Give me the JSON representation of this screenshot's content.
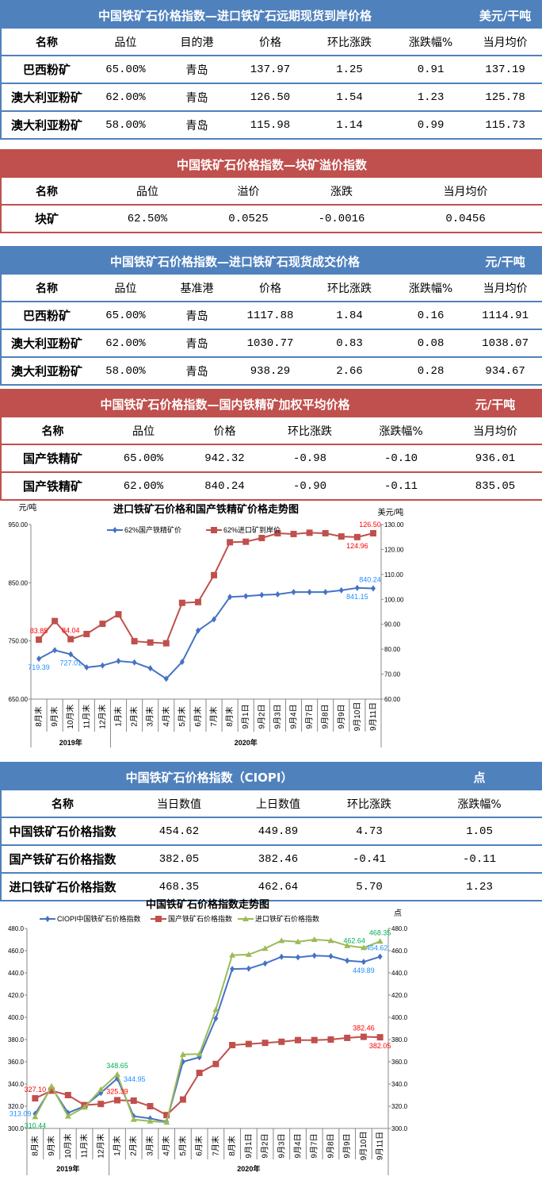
{
  "colors": {
    "blue_theme": "#4f81bd",
    "red_theme": "#c0504d",
    "series_blue": "#4472c4",
    "series_red": "#c0504d",
    "series_green": "#9bbb59",
    "label_blue": "#1e90ff",
    "label_red": "#ff0000",
    "label_green": "#00b050"
  },
  "tables": [
    {
      "title": "中国铁矿石价格指数—进口铁矿石远期现货到岸价格",
      "unit": "美元/干吨",
      "theme": "#4f81bd",
      "columns": [
        "名称",
        "品位",
        "目的港",
        "价格",
        "环比涨跌",
        "涨跌幅%",
        "当月均价"
      ],
      "rows": [
        [
          "巴西粉矿",
          "65.00%",
          "青岛",
          "137.97",
          "1.25",
          "0.91",
          "137.19"
        ],
        [
          "澳大利亚粉矿",
          "62.00%",
          "青岛",
          "126.50",
          "1.54",
          "1.23",
          "125.78"
        ],
        [
          "澳大利亚粉矿",
          "58.00%",
          "青岛",
          "115.98",
          "1.14",
          "0.99",
          "115.73"
        ]
      ]
    },
    {
      "title": "中国铁矿石价格指数—块矿溢价指数",
      "unit": "",
      "theme": "#c0504d",
      "columns": [
        "名称",
        "品位",
        "溢价",
        "涨跌",
        "当月均价"
      ],
      "rows": [
        [
          "块矿",
          "62.50%",
          "0.0525",
          "-0.0016",
          "0.0456"
        ]
      ]
    },
    {
      "title": "中国铁矿石价格指数—进口铁矿石现货成交价格",
      "unit": "元/干吨",
      "theme": "#4f81bd",
      "columns": [
        "名称",
        "品位",
        "基准港",
        "价格",
        "环比涨跌",
        "涨跌幅%",
        "当月均价"
      ],
      "rows": [
        [
          "巴西粉矿",
          "65.00%",
          "青岛",
          "1117.88",
          "1.84",
          "0.16",
          "1114.91"
        ],
        [
          "澳大利亚粉矿",
          "62.00%",
          "青岛",
          "1030.77",
          "0.83",
          "0.08",
          "1038.07"
        ],
        [
          "澳大利亚粉矿",
          "58.00%",
          "青岛",
          "938.29",
          "2.66",
          "0.28",
          "934.67"
        ]
      ]
    },
    {
      "title": "中国铁矿石价格指数—国内铁精矿加权平均价格",
      "unit": "元/干吨",
      "theme": "#c0504d",
      "columns": [
        "名称",
        "品位",
        "价格",
        "环比涨跌",
        "涨跌幅%",
        "当月均价"
      ],
      "rows": [
        [
          "国产铁精矿",
          "65.00%",
          "942.32",
          "-0.98",
          "-0.10",
          "936.01"
        ],
        [
          "国产铁精矿",
          "62.00%",
          "840.24",
          "-0.90",
          "-0.11",
          "835.05"
        ]
      ]
    },
    {
      "title": "中国铁矿石价格指数（CIOPI）",
      "unit": "点",
      "theme": "#4f81bd",
      "columns": [
        "名称",
        "当日数值",
        "上日数值",
        "环比涨跌",
        "涨跌幅%"
      ],
      "rows": [
        [
          "中国铁矿石价格指数",
          "454.62",
          "449.89",
          "4.73",
          "1.05"
        ],
        [
          "国产铁矿石价格指数",
          "382.05",
          "382.46",
          "-0.41",
          "-0.11"
        ],
        [
          "进口铁矿石价格指数",
          "468.35",
          "462.64",
          "5.70",
          "1.23"
        ]
      ]
    }
  ],
  "chart_data": [
    {
      "type": "line",
      "title": "进口铁矿石价格和国产铁精矿价格走势图",
      "ylabel": "元/吨",
      "y2label": "美元/吨",
      "ylim": [
        650,
        950
      ],
      "yticks": [
        "650.00",
        "750.00",
        "850.00",
        "950.00"
      ],
      "y2lim": [
        60,
        130
      ],
      "y2ticks": [
        "60.00",
        "70.00",
        "80.00",
        "90.00",
        "100.00",
        "110.00",
        "120.00",
        "130.00"
      ],
      "grid": false,
      "legend": "top",
      "categories": [
        "8月末",
        "9月末",
        "10月末",
        "11月末",
        "12月末",
        "1月末",
        "2月末",
        "3月末",
        "4月末",
        "5月末",
        "6月末",
        "7月末",
        "8月末",
        "9月1日",
        "9月2日",
        "9月3日",
        "9月4日",
        "9月7日",
        "9月8日",
        "9月9日",
        "9月10日",
        "9月11日"
      ],
      "groups": [
        {
          "label": "2019年",
          "count": 5
        },
        {
          "label": "2020年",
          "count": 17
        }
      ],
      "series": [
        {
          "name": "62%国产铁精矿价",
          "axis": "left",
          "color": "#4472c4",
          "marker": "diamond",
          "values": [
            719.39,
            734,
            727.01,
            704.5,
            707.7,
            715.5,
            713,
            703,
            685,
            714,
            767.7,
            787,
            825.5,
            827,
            829,
            830,
            834,
            834,
            834,
            837,
            841.15,
            840.24
          ]
        },
        {
          "name": "62%进口矿到岸价",
          "axis": "right",
          "color": "#c0504d",
          "marker": "square",
          "values": [
            83.85,
            91.3,
            84.04,
            86.1,
            90.2,
            94,
            83.2,
            82.7,
            82.4,
            98.6,
            98.9,
            109.7,
            122.9,
            123.1,
            124.6,
            126.5,
            126.2,
            126.7,
            126.5,
            125.2,
            124.96,
            126.5
          ]
        }
      ],
      "data_labels": [
        {
          "series": 0,
          "index": 0,
          "text": "719.39",
          "color": "#1e90ff",
          "pos": "below"
        },
        {
          "series": 0,
          "index": 2,
          "text": "727.01",
          "color": "#1e90ff",
          "pos": "below"
        },
        {
          "series": 0,
          "index": 20,
          "text": "841.15",
          "color": "#1e90ff",
          "pos": "below"
        },
        {
          "series": 0,
          "index": 21,
          "text": "840.24",
          "color": "#1e90ff",
          "pos": "above"
        },
        {
          "series": 1,
          "index": 0,
          "text": "83.85",
          "color": "#ff0000",
          "pos": "above"
        },
        {
          "series": 1,
          "index": 2,
          "text": "84.04",
          "color": "#ff0000",
          "pos": "above"
        },
        {
          "series": 1,
          "index": 20,
          "text": "124.96",
          "color": "#ff0000",
          "pos": "below"
        },
        {
          "series": 1,
          "index": 21,
          "text": "126.50",
          "color": "#ff0000",
          "pos": "above"
        }
      ]
    },
    {
      "type": "line",
      "title": "中国铁矿石价格指数走势图",
      "ylabel": "",
      "y2label": "点",
      "ylim": [
        300,
        480
      ],
      "yticks": [
        "300.0",
        "320.0",
        "340.0",
        "360.0",
        "380.0",
        "400.0",
        "420.0",
        "440.0",
        "460.0",
        "480.0"
      ],
      "y2lim": [
        300,
        480
      ],
      "y2ticks": [
        "300.0",
        "320.0",
        "340.0",
        "360.0",
        "380.0",
        "400.0",
        "420.0",
        "440.0",
        "460.0",
        "480.0"
      ],
      "grid": false,
      "legend": "top",
      "categories": [
        "8月末",
        "9月末",
        "10月末",
        "11月末",
        "12月末",
        "1月末",
        "2月末",
        "3月末",
        "4月末",
        "5月末",
        "6月末",
        "7月末",
        "8月末",
        "9月1日",
        "9月2日",
        "9月3日",
        "9月4日",
        "9月7日",
        "9月8日",
        "9月9日",
        "9月10日",
        "9月11日"
      ],
      "groups": [
        {
          "label": "2019年",
          "count": 5
        },
        {
          "label": "2020年",
          "count": 17
        }
      ],
      "series": [
        {
          "name": "CIOPI中国铁矿石价格指数",
          "axis": "left",
          "color": "#4472c4",
          "marker": "diamond",
          "values": [
            313.09,
            337,
            314,
            320,
            332,
            344.95,
            311,
            309,
            306,
            360,
            364,
            399,
            443.5,
            443.8,
            448.5,
            454.5,
            454,
            455.5,
            455,
            451,
            449.89,
            454.62
          ]
        },
        {
          "name": "国产铁矿石价格指数",
          "axis": "left",
          "color": "#c0504d",
          "marker": "square",
          "values": [
            327.1,
            334,
            330,
            321,
            322,
            325.39,
            325,
            320,
            312,
            326,
            350,
            358,
            375,
            376,
            377,
            378,
            379.5,
            379.5,
            380,
            381.5,
            382.46,
            382.05
          ]
        },
        {
          "name": "进口铁矿石价格指数",
          "axis": "left",
          "color": "#9bbb59",
          "marker": "triangle",
          "values": [
            310.44,
            338,
            311,
            319,
            335,
            348.65,
            308,
            306.5,
            305.5,
            366.5,
            367,
            407,
            456,
            456.5,
            462,
            469,
            468,
            470,
            469,
            464.5,
            462.64,
            468.35
          ]
        }
      ],
      "data_labels": [
        {
          "series": 0,
          "index": 0,
          "text": "313.09",
          "color": "#1e90ff",
          "pos": "left"
        },
        {
          "series": 0,
          "index": 5,
          "text": "344.95",
          "color": "#1e90ff",
          "pos": "right"
        },
        {
          "series": 0,
          "index": 20,
          "text": "449.89",
          "color": "#1e90ff",
          "pos": "below"
        },
        {
          "series": 0,
          "index": 21,
          "text": "454.62",
          "color": "#1e90ff",
          "pos": "above"
        },
        {
          "series": 1,
          "index": 0,
          "text": "327.10",
          "color": "#ff0000",
          "pos": "above"
        },
        {
          "series": 1,
          "index": 5,
          "text": "325.39",
          "color": "#ff0000",
          "pos": "above"
        },
        {
          "series": 1,
          "index": 20,
          "text": "382.46",
          "color": "#ff0000",
          "pos": "above"
        },
        {
          "series": 1,
          "index": 21,
          "text": "382.05",
          "color": "#ff0000",
          "pos": "below"
        },
        {
          "series": 2,
          "index": 0,
          "text": "310.44",
          "color": "#00b050",
          "pos": "below"
        },
        {
          "series": 2,
          "index": 5,
          "text": "348.65",
          "color": "#00b050",
          "pos": "above"
        },
        {
          "series": 2,
          "index": 20,
          "text": "462.64",
          "color": "#00b050",
          "pos": "above"
        },
        {
          "series": 2,
          "index": 21,
          "text": "468.35",
          "color": "#00b050",
          "pos": "above"
        }
      ]
    }
  ]
}
